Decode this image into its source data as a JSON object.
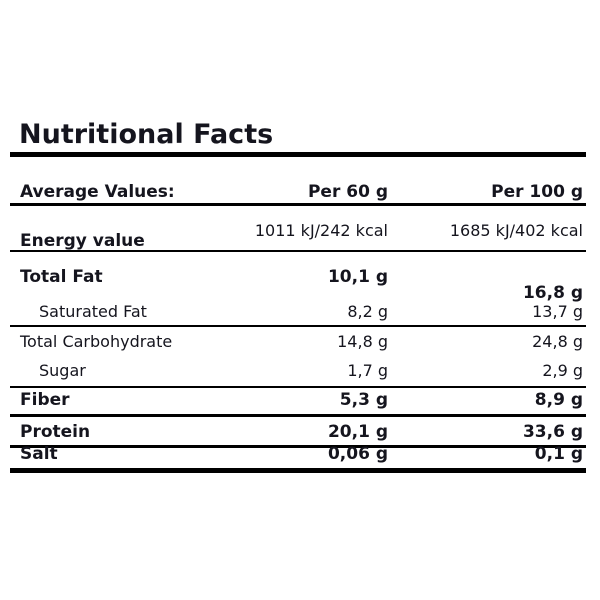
{
  "title": "Nutritional Facts",
  "table": {
    "header": {
      "label": "Average Values:",
      "col60": "Per 60 g",
      "col100": "Per 100 g"
    },
    "rows": [
      {
        "label": "Energy value",
        "per60": "1011 kJ/242 kcal",
        "per100": "1685 kJ/402 kcal"
      },
      {
        "label": "Total Fat",
        "per60": "10,1 g",
        "per100": "16,8 g"
      },
      {
        "label": "Saturated Fat",
        "per60": "8,2 g",
        "per100": "13,7 g"
      },
      {
        "label": "Total Carbohydrate",
        "per60": "14,8 g",
        "per100": "24,8 g"
      },
      {
        "label": "Sugar",
        "per60": "1,7 g",
        "per100": "2,9 g"
      },
      {
        "label": "Fiber",
        "per60": "5,3 g",
        "per100": "8,9 g"
      },
      {
        "label": "Protein",
        "per60": "20,1 g",
        "per100": "33,6 g"
      },
      {
        "label": "Salt",
        "per60": "0,06 g",
        "per100": "0,1 g"
      }
    ]
  },
  "colors": {
    "text": "#15151e",
    "rule": "#000000",
    "background": "#ffffff"
  }
}
